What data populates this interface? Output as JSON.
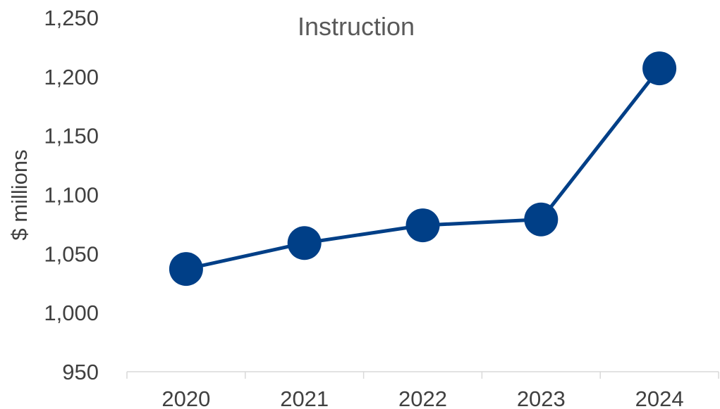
{
  "chart_data": {
    "type": "line",
    "title": "Instruction",
    "xlabel": "",
    "ylabel": "$ millions",
    "categories": [
      "2020",
      "2021",
      "2022",
      "2023",
      "2024"
    ],
    "series": [
      {
        "values": [
          1037,
          1059,
          1074,
          1079,
          1207
        ]
      }
    ],
    "ylim": [
      950,
      1250
    ],
    "yticks": [
      950,
      1000,
      1050,
      1100,
      1150,
      1200,
      1250
    ],
    "ytick_labels": [
      "950",
      "1,000",
      "1,050",
      "1,100",
      "1,150",
      "1,200",
      "1,250"
    ],
    "grid": false,
    "legend": "none",
    "colors": {
      "series": "#003F87",
      "axis": "#D9D9D9",
      "text": "#404040",
      "title": "#595959"
    }
  }
}
